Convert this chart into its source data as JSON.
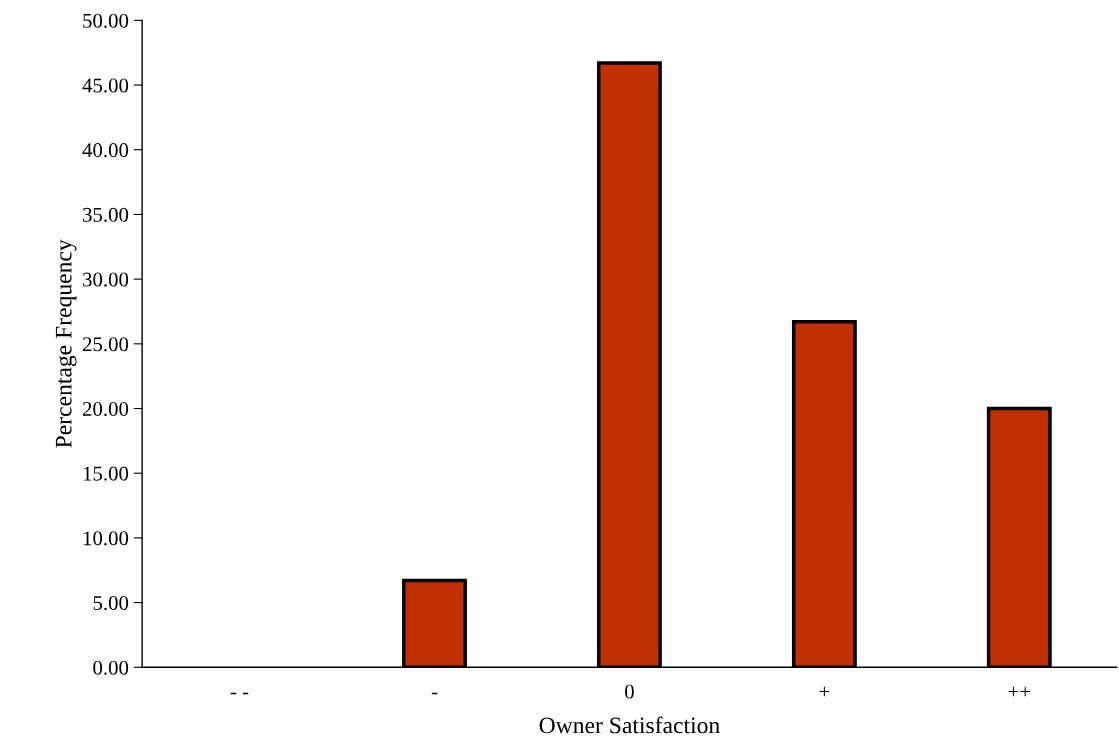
{
  "chart_data": {
    "type": "bar",
    "xlabel": "Owner Satisfaction",
    "ylabel": "Percentage Frequency",
    "categories": [
      "- -",
      "-",
      "0",
      "+",
      "++"
    ],
    "values": [
      0,
      6.7,
      46.7,
      26.7,
      20.0
    ],
    "color": "#c03000",
    "ylim": [
      0,
      50
    ],
    "yticks": [
      {
        "value": 0,
        "label": "0.00"
      },
      {
        "value": 5,
        "label": "5.00"
      },
      {
        "value": 10,
        "label": "10.00"
      },
      {
        "value": 15,
        "label": "15.00"
      },
      {
        "value": 20,
        "label": "20.00"
      },
      {
        "value": 25,
        "label": "25.00"
      },
      {
        "value": 30,
        "label": "30.00"
      },
      {
        "value": 35,
        "label": "35.00"
      },
      {
        "value": 40,
        "label": "40.00"
      },
      {
        "value": 45,
        "label": "45.00"
      },
      {
        "value": 50,
        "label": "50.00"
      }
    ],
    "grid": false,
    "legend": false
  }
}
